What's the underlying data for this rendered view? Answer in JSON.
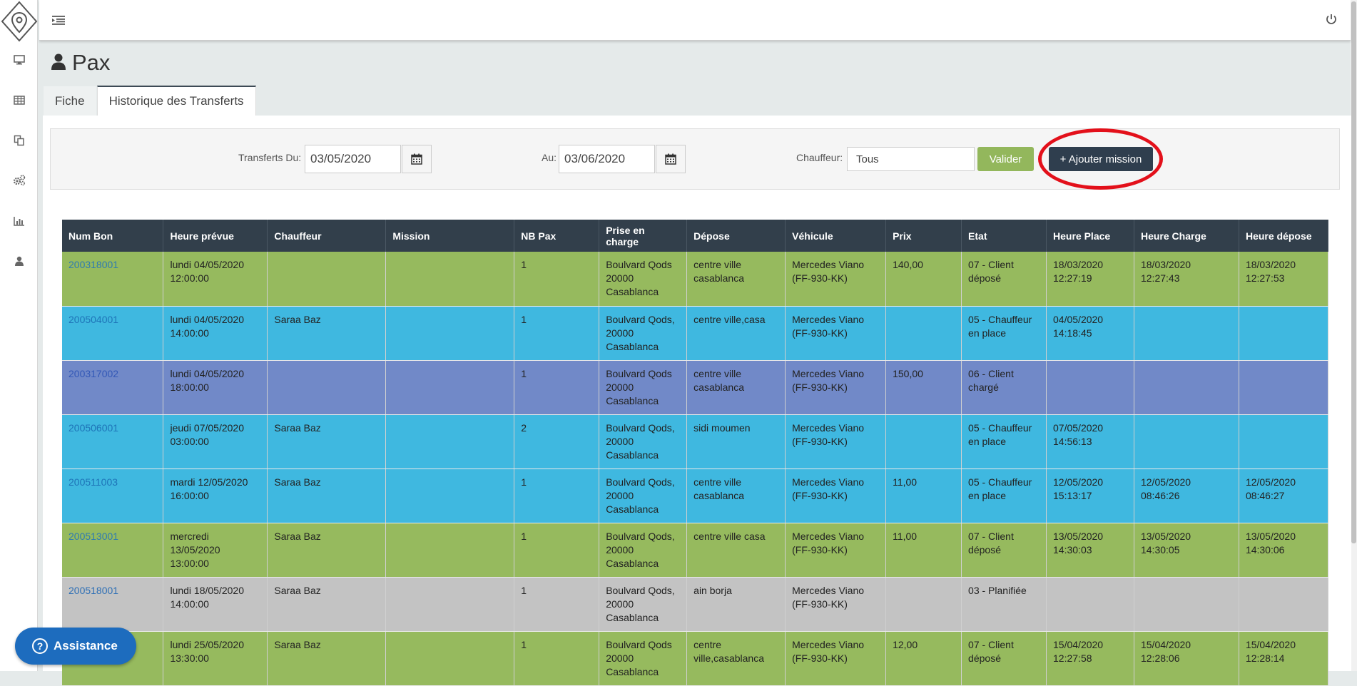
{
  "page": {
    "title": "Pax"
  },
  "tabs": [
    {
      "label": "Fiche"
    },
    {
      "label": "Historique des Transferts"
    }
  ],
  "filters": {
    "from_label": "Transferts Du:",
    "from_value": "03/05/2020",
    "to_label": "Au:",
    "to_value": "03/06/2020",
    "driver_label": "Chauffeur:",
    "driver_value": "Tous",
    "validate_label": "Valider",
    "add_mission_label": "+ Ajouter mission"
  },
  "table": {
    "headers": [
      "Num Bon",
      "Heure prévue",
      "Chauffeur",
      "Mission",
      "NB Pax",
      "Prise en charge",
      "Dépose",
      "Véhicule",
      "Prix",
      "Etat",
      "Heure Place",
      "Heure Charge",
      "Heure dépose"
    ],
    "rows": [
      {
        "num": "200318001",
        "heure": "lundi 04/05/2020 12:00:00",
        "chauffeur": "",
        "mission": "",
        "pax": "1",
        "prise": "Boulvard Qods 20000 Casablanca",
        "depose": "centre ville casablanca",
        "vehicule": "Mercedes Viano (FF-930-KK)",
        "prix": "140,00",
        "etat": "07 - Client déposé",
        "place": "18/03/2020 12:27:19",
        "charge": "18/03/2020 12:27:43",
        "hdepose": "18/03/2020 12:27:53"
      },
      {
        "num": "200504001",
        "heure": "lundi 04/05/2020 14:00:00",
        "chauffeur": "Saraa Baz",
        "mission": "",
        "pax": "1",
        "prise": "Boulvard Qods, 20000 Casablanca",
        "depose": "centre ville,casa",
        "vehicule": "Mercedes Viano (FF-930-KK)",
        "prix": "",
        "etat": "05 - Chauffeur en place",
        "place": "04/05/2020 14:18:45",
        "charge": "",
        "hdepose": ""
      },
      {
        "num": "200317002",
        "heure": "lundi 04/05/2020 18:00:00",
        "chauffeur": "",
        "mission": "",
        "pax": "1",
        "prise": "Boulvard Qods 20000 Casablanca",
        "depose": "centre ville casablanca",
        "vehicule": "Mercedes Viano (FF-930-KK)",
        "prix": "150,00",
        "etat": "06 - Client chargé",
        "place": "",
        "charge": "",
        "hdepose": ""
      },
      {
        "num": "200506001",
        "heure": "jeudi 07/05/2020 03:00:00",
        "chauffeur": "Saraa Baz",
        "mission": "",
        "pax": "2",
        "prise": "Boulvard Qods, 20000 Casablanca",
        "depose": "sidi moumen",
        "vehicule": "Mercedes Viano (FF-930-KK)",
        "prix": "",
        "etat": "05 - Chauffeur en place",
        "place": "07/05/2020 14:56:13",
        "charge": "",
        "hdepose": ""
      },
      {
        "num": "200511003",
        "heure": "mardi 12/05/2020 16:00:00",
        "chauffeur": "Saraa Baz",
        "mission": "",
        "pax": "1",
        "prise": "Boulvard Qods, 20000 Casablanca",
        "depose": "centre ville casablanca",
        "vehicule": "Mercedes Viano (FF-930-KK)",
        "prix": "11,00",
        "etat": "05 - Chauffeur en place",
        "place": "12/05/2020 15:13:17",
        "charge": "12/05/2020 08:46:26",
        "hdepose": "12/05/2020 08:46:27"
      },
      {
        "num": "200513001",
        "heure": "mercredi 13/05/2020 13:00:00",
        "chauffeur": "Saraa Baz",
        "mission": "",
        "pax": "1",
        "prise": "Boulvard Qods, 20000 Casablanca",
        "depose": "centre ville casa",
        "vehicule": "Mercedes Viano (FF-930-KK)",
        "prix": "11,00",
        "etat": "07 - Client déposé",
        "place": "13/05/2020 14:30:03",
        "charge": "13/05/2020 14:30:05",
        "hdepose": "13/05/2020 14:30:06"
      },
      {
        "num": "200518001",
        "heure": "lundi 18/05/2020 14:00:00",
        "chauffeur": "Saraa Baz",
        "mission": "",
        "pax": "1",
        "prise": "Boulvard Qods, 20000 Casablanca",
        "depose": "ain borja",
        "vehicule": "Mercedes Viano (FF-930-KK)",
        "prix": "",
        "etat": "03 - Planifiée",
        "place": "",
        "charge": "",
        "hdepose": ""
      },
      {
        "num": "",
        "heure": "lundi 25/05/2020 13:30:00",
        "chauffeur": "Saraa Baz",
        "mission": "",
        "pax": "1",
        "prise": "Boulvard Qods 20000 Casablanca",
        "depose": "centre ville,casablanca",
        "vehicule": "Mercedes Viano (FF-930-KK)",
        "prix": "12,00",
        "etat": "07 - Client déposé",
        "place": "15/04/2020 12:27:58",
        "charge": "15/04/2020 12:28:06",
        "hdepose": "15/04/2020 12:28:14"
      }
    ]
  },
  "assistance": {
    "label": "Assistance"
  },
  "icons": {
    "sidebar": [
      "desktop-icon",
      "table-icon",
      "copy-icon",
      "cogs-icon",
      "bar-chart-icon",
      "user-icon"
    ],
    "topbar": [
      "menu-toggle-icon",
      "power-icon"
    ]
  },
  "colors": {
    "green_row": "#96ba5e",
    "blue_row": "#3fb8e0",
    "purple_row": "#7189c8",
    "grey_row": "#c3c3c3",
    "header_bg": "#323f4b",
    "validate_btn": "#93b75c",
    "add_btn": "#2f3e4e",
    "annotation_circle": "#e3101a"
  }
}
